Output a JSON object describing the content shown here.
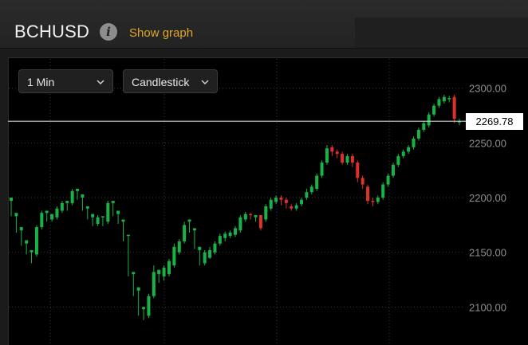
{
  "header": {
    "symbol": "BCHUSD",
    "info_icon": "info-icon",
    "show_graph_label": "Show graph"
  },
  "controls": {
    "interval": "1 Min",
    "chart_type": "Candlestick"
  },
  "colors": {
    "up": "#19b248",
    "down": "#e0302a",
    "grid": "#3a3a3a",
    "price_line": "#cfcfcf",
    "accent": "#e0a52a"
  },
  "current_price": "2269.78",
  "chart_data": {
    "type": "candlestick",
    "y_ticks": [
      "2300.00",
      "2250.00",
      "2200.00",
      "2150.00",
      "2100.00"
    ],
    "ylim": [
      2066,
      2326
    ],
    "grid": true,
    "current_price": 2269.78,
    "candles": [
      [
        2197,
        2200,
        2185,
        2183
      ],
      [
        2183,
        2186,
        2170,
        2168
      ],
      [
        2170,
        2173,
        2158,
        2156
      ],
      [
        2158,
        2161,
        2150,
        2148
      ],
      [
        2150,
        2152,
        2145,
        2140
      ],
      [
        2148,
        2173,
        2175,
        2146
      ],
      [
        2173,
        2186,
        2188,
        2171
      ],
      [
        2186,
        2188,
        2180,
        2178
      ],
      [
        2180,
        2185,
        2182,
        2178
      ],
      [
        2182,
        2190,
        2192,
        2180
      ],
      [
        2188,
        2195,
        2197,
        2186
      ],
      [
        2195,
        2197,
        2190,
        2188
      ],
      [
        2195,
        2206,
        2208,
        2193
      ],
      [
        2206,
        2208,
        2200,
        2198
      ],
      [
        2200,
        2203,
        2190,
        2188
      ],
      [
        2190,
        2192,
        2182,
        2180
      ],
      [
        2182,
        2185,
        2176,
        2174
      ],
      [
        2176,
        2182,
        2184,
        2174
      ],
      [
        2182,
        2183,
        2178,
        2174
      ],
      [
        2178,
        2195,
        2197,
        2176
      ],
      [
        2195,
        2197,
        2185,
        2183
      ],
      [
        2185,
        2188,
        2178,
        2176
      ],
      [
        2178,
        2180,
        2165,
        2160
      ],
      [
        2165,
        2166,
        2130,
        2128
      ],
      [
        2130,
        2132,
        2115,
        2110
      ],
      [
        2115,
        2118,
        2096,
        2092
      ],
      [
        2098,
        2100,
        2090,
        2088
      ],
      [
        2092,
        2110,
        2112,
        2090
      ],
      [
        2110,
        2132,
        2138,
        2108
      ],
      [
        2130,
        2134,
        2125,
        2122
      ],
      [
        2128,
        2136,
        2138,
        2124
      ],
      [
        2130,
        2142,
        2144,
        2128
      ],
      [
        2138,
        2155,
        2158,
        2136
      ],
      [
        2150,
        2160,
        2162,
        2148
      ],
      [
        2160,
        2175,
        2178,
        2158
      ],
      [
        2178,
        2180,
        2170,
        2168
      ],
      [
        2170,
        2172,
        2155,
        2153
      ],
      [
        2152,
        2155,
        2140,
        2138
      ],
      [
        2140,
        2150,
        2152,
        2138
      ],
      [
        2145,
        2152,
        2155,
        2144
      ],
      [
        2150,
        2158,
        2160,
        2148
      ],
      [
        2158,
        2165,
        2167,
        2156
      ],
      [
        2163,
        2167,
        2169,
        2160
      ],
      [
        2165,
        2168,
        2170,
        2163
      ],
      [
        2166,
        2172,
        2174,
        2164
      ],
      [
        2170,
        2182,
        2184,
        2168
      ],
      [
        2180,
        2185,
        2187,
        2178
      ],
      [
        2185,
        2184,
        2186,
        2180
      ],
      [
        2182,
        2184,
        2183,
        2178
      ],
      [
        2184,
        2172,
        2184,
        2170
      ],
      [
        2180,
        2192,
        2194,
        2178
      ],
      [
        2190,
        2198,
        2200,
        2188
      ],
      [
        2196,
        2200,
        2202,
        2194
      ],
      [
        2200,
        2198,
        2202,
        2193
      ],
      [
        2198,
        2195,
        2200,
        2190
      ],
      [
        2192,
        2190,
        2194,
        2188
      ],
      [
        2190,
        2193,
        2195,
        2188
      ],
      [
        2194,
        2198,
        2200,
        2192
      ],
      [
        2200,
        2205,
        2208,
        2198
      ],
      [
        2205,
        2210,
        2212,
        2203
      ],
      [
        2208,
        2220,
        2222,
        2206
      ],
      [
        2220,
        2232,
        2234,
        2218
      ],
      [
        2232,
        2245,
        2248,
        2230
      ],
      [
        2246,
        2242,
        2248,
        2238
      ],
      [
        2242,
        2240,
        2244,
        2236
      ],
      [
        2240,
        2232,
        2242,
        2230
      ],
      [
        2232,
        2238,
        2240,
        2230
      ],
      [
        2238,
        2232,
        2240,
        2228
      ],
      [
        2232,
        2218,
        2234,
        2214
      ],
      [
        2218,
        2212,
        2220,
        2208
      ],
      [
        2210,
        2197,
        2212,
        2194
      ],
      [
        2197,
        2196,
        2200,
        2192
      ],
      [
        2196,
        2200,
        2202,
        2194
      ],
      [
        2200,
        2212,
        2214,
        2198
      ],
      [
        2212,
        2220,
        2222,
        2210
      ],
      [
        2220,
        2230,
        2232,
        2218
      ],
      [
        2230,
        2238,
        2240,
        2228
      ],
      [
        2238,
        2242,
        2244,
        2236
      ],
      [
        2242,
        2246,
        2248,
        2240
      ],
      [
        2246,
        2254,
        2256,
        2244
      ],
      [
        2254,
        2262,
        2264,
        2252
      ],
      [
        2262,
        2268,
        2270,
        2260
      ],
      [
        2266,
        2276,
        2278,
        2264
      ],
      [
        2276,
        2284,
        2286,
        2274
      ],
      [
        2284,
        2290,
        2292,
        2282
      ],
      [
        2288,
        2292,
        2294,
        2286
      ],
      [
        2290,
        2291,
        2293,
        2287
      ],
      [
        2292,
        2272,
        2294,
        2268
      ],
      [
        2269.78,
        2269.78,
        2272,
        2266
      ]
    ]
  }
}
